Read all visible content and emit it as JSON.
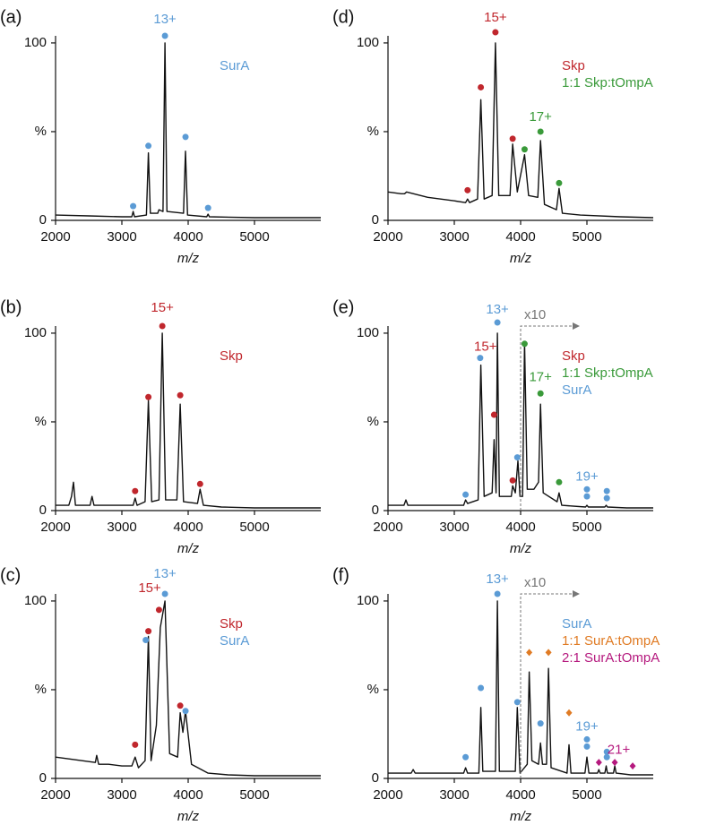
{
  "chart_data": [
    {
      "type": "line",
      "label": "(a)",
      "xlabel": "m/z",
      "xlim": [
        2000,
        6000
      ],
      "xticks": [
        2000,
        3000,
        4000,
        5000
      ],
      "ylim": [
        0,
        104
      ],
      "yticks": [
        0,
        {
          "value": 50,
          "label": "%"
        },
        100
      ],
      "x": [
        2000,
        2500,
        3000,
        3150,
        3170,
        3190,
        3370,
        3400,
        3430,
        3540,
        3560,
        3620,
        3650,
        3680,
        3930,
        3960,
        3990,
        4280,
        4300,
        4320,
        5000,
        6000
      ],
      "values": [
        3,
        2.5,
        2,
        2,
        5,
        2,
        3,
        38,
        4,
        4,
        6,
        5,
        100,
        5,
        4,
        39,
        3,
        2,
        3.5,
        2,
        1.5,
        1.5
      ],
      "series": [
        {
          "name": "SurA",
          "color": "#5b9bd5",
          "marker": "circle",
          "x": [
            3170,
            3400,
            3650,
            3960,
            4300
          ],
          "values": [
            8,
            42,
            104,
            47,
            7
          ]
        }
      ],
      "annotations": [
        {
          "text": "13+",
          "color": "#5b9bd5",
          "x": 3650,
          "y": 113
        }
      ]
    },
    {
      "type": "line",
      "label": "(b)",
      "xlabel": "m/z",
      "xlim": [
        2000,
        6000
      ],
      "xticks": [
        2000,
        3000,
        4000,
        5000
      ],
      "ylim": [
        0,
        104
      ],
      "yticks": [
        0,
        {
          "value": 50,
          "label": "%"
        },
        100
      ],
      "x": [
        2000,
        2200,
        2240,
        2270,
        2300,
        2520,
        2550,
        2580,
        3000,
        3170,
        3200,
        3230,
        3350,
        3400,
        3450,
        3560,
        3610,
        3660,
        3830,
        3880,
        3930,
        4140,
        4180,
        4230,
        4500,
        5000,
        6000
      ],
      "values": [
        3,
        3,
        8,
        16,
        3,
        3,
        8,
        3,
        3,
        3,
        7,
        3,
        5,
        62,
        5,
        6,
        100,
        6,
        6,
        60,
        5,
        4,
        12,
        3,
        2,
        1.5,
        1.5
      ],
      "series": [
        {
          "name": "Skp",
          "color": "#c0272d",
          "marker": "circle",
          "x": [
            3200,
            3400,
            3610,
            3880,
            4180
          ],
          "values": [
            11,
            64,
            104,
            65,
            15
          ]
        }
      ],
      "annotations": [
        {
          "text": "15+",
          "color": "#c0272d",
          "x": 3610,
          "y": 114
        }
      ]
    },
    {
      "type": "line",
      "label": "(c)",
      "xlabel": "m/z",
      "xlim": [
        2000,
        6000
      ],
      "xticks": [
        2000,
        3000,
        4000,
        5000
      ],
      "ylim": [
        0,
        104
      ],
      "yticks": [
        0,
        {
          "value": 50,
          "label": "%"
        },
        100
      ],
      "x": [
        2000,
        2200,
        2400,
        2600,
        2620,
        2650,
        2800,
        3000,
        3150,
        3200,
        3250,
        3350,
        3400,
        3440,
        3520,
        3580,
        3650,
        3720,
        3840,
        3880,
        3920,
        3960,
        4050,
        4300,
        4600,
        5000,
        6000
      ],
      "values": [
        12,
        11,
        10,
        9,
        13,
        8,
        8,
        7,
        7,
        12,
        6,
        10,
        80,
        10,
        30,
        85,
        100,
        14,
        12,
        37,
        26,
        38,
        8,
        3,
        2,
        1.5,
        1.5
      ],
      "series": [
        {
          "name": "Skp",
          "color": "#c0272d",
          "marker": "circle",
          "x": [
            3200,
            3400,
            3560,
            3880
          ],
          "values": [
            19,
            83,
            95,
            41
          ]
        },
        {
          "name": "SurA",
          "color": "#5b9bd5",
          "marker": "circle",
          "x": [
            3360,
            3650,
            3960
          ],
          "values": [
            78,
            104,
            38
          ]
        }
      ],
      "annotations": [
        {
          "text": "15+",
          "color": "#c0272d",
          "x": 3420,
          "y": 107
        },
        {
          "text": "13+",
          "color": "#5b9bd5",
          "x": 3650,
          "y": 115
        }
      ]
    },
    {
      "type": "line",
      "label": "(d)",
      "xlabel": "m/z",
      "xlim": [
        2000,
        6000
      ],
      "xticks": [
        2000,
        3000,
        4000,
        5000
      ],
      "ylim": [
        0,
        104
      ],
      "yticks": [
        0,
        {
          "value": 50,
          "label": "%"
        },
        100
      ],
      "x": [
        2000,
        2200,
        2250,
        2280,
        2600,
        3000,
        3170,
        3200,
        3230,
        3350,
        3400,
        3450,
        3570,
        3620,
        3670,
        3840,
        3880,
        3950,
        4060,
        4120,
        4260,
        4300,
        4360,
        4540,
        4580,
        4630,
        4900,
        5500,
        6000
      ],
      "values": [
        16,
        15,
        15,
        16,
        13,
        11,
        10,
        12,
        10,
        12,
        68,
        12,
        14,
        100,
        14,
        14,
        43,
        16,
        37,
        14,
        13,
        45,
        9,
        6,
        18,
        4,
        3,
        2,
        1.5
      ],
      "series": [
        {
          "name": "Skp",
          "color": "#c0272d",
          "marker": "circle",
          "x": [
            3200,
            3400,
            3620,
            3880
          ],
          "values": [
            17,
            75,
            106,
            46
          ]
        },
        {
          "name": "1:1 Skp:tOmpA",
          "color": "#3a9a3a",
          "marker": "circle",
          "x": [
            4060,
            4300,
            4580
          ],
          "values": [
            40,
            50,
            21
          ]
        }
      ],
      "annotations": [
        {
          "text": "15+",
          "color": "#c0272d",
          "x": 3620,
          "y": 114
        },
        {
          "text": "17+",
          "color": "#3a9a3a",
          "x": 4300,
          "y": 58
        }
      ]
    },
    {
      "type": "line",
      "label": "(e)",
      "xlabel": "m/z",
      "xlim": [
        2000,
        6000
      ],
      "xticks": [
        2000,
        3000,
        4000,
        5000
      ],
      "ylim": [
        0,
        104
      ],
      "yticks": [
        0,
        {
          "value": 50,
          "label": "%"
        },
        100
      ],
      "zoom": {
        "x": 4000,
        "y": 104,
        "label": "x10"
      },
      "x": [
        2000,
        2240,
        2270,
        2300,
        2600,
        3000,
        3140,
        3170,
        3200,
        3360,
        3400,
        3450,
        3570,
        3600,
        3630,
        3650,
        3680,
        3860,
        3880,
        3920,
        3960,
        3990,
        4030,
        4060,
        4100,
        4200,
        4270,
        4300,
        4340,
        4550,
        4580,
        4620,
        4980,
        5000,
        5020,
        5270,
        5290,
        5310,
        5600,
        6000
      ],
      "values": [
        3,
        3,
        6,
        3,
        3,
        3,
        3,
        6,
        4,
        6,
        82,
        8,
        10,
        40,
        10,
        100,
        8,
        8,
        14,
        10,
        28,
        8,
        8,
        95,
        12,
        12,
        16,
        60,
        10,
        5,
        10,
        3,
        2,
        3,
        2,
        2,
        3,
        2,
        1.5,
        1.5
      ],
      "series": [
        {
          "name": "Skp",
          "color": "#c0272d",
          "marker": "circle",
          "x": [
            3600,
            3880
          ],
          "values": [
            54,
            17
          ]
        },
        {
          "name": "1:1 Skp:tOmpA",
          "color": "#3a9a3a",
          "marker": "circle",
          "x": [
            4060,
            4300,
            4580
          ],
          "values": [
            94,
            66,
            16
          ]
        },
        {
          "name": "SurA",
          "color": "#5b9bd5",
          "marker": "circle",
          "x": [
            3170,
            3390,
            3650,
            3950,
            5000,
            5000,
            5300,
            5300
          ],
          "values": [
            9,
            86,
            106,
            30,
            12,
            8,
            11,
            7
          ]
        }
      ],
      "annotations": [
        {
          "text": "13+",
          "color": "#5b9bd5",
          "x": 3650,
          "y": 113
        },
        {
          "text": "15+",
          "color": "#c0272d",
          "x": 3470,
          "y": 92
        },
        {
          "text": "17+",
          "color": "#3a9a3a",
          "x": 4300,
          "y": 75
        },
        {
          "text": "19+",
          "color": "#5b9bd5",
          "x": 5000,
          "y": 19
        }
      ]
    },
    {
      "type": "line",
      "label": "(f)",
      "xlabel": "m/z",
      "xlim": [
        2000,
        6000
      ],
      "xticks": [
        2000,
        3000,
        4000,
        5000
      ],
      "ylim": [
        0,
        104
      ],
      "yticks": [
        0,
        {
          "value": 50,
          "label": "%"
        },
        100
      ],
      "zoom": {
        "x": 4000,
        "y": 104,
        "label": "x10"
      },
      "x": [
        2000,
        2350,
        2380,
        2410,
        3000,
        3140,
        3170,
        3200,
        3370,
        3400,
        3430,
        3620,
        3650,
        3680,
        3920,
        3950,
        3990,
        4100,
        4130,
        4170,
        4270,
        4300,
        4330,
        4390,
        4420,
        4460,
        4700,
        4730,
        4760,
        4970,
        5000,
        5030,
        5160,
        5180,
        5200,
        5270,
        5290,
        5310,
        5400,
        5420,
        5440,
        5660,
        5680,
        5700,
        6000
      ],
      "values": [
        3,
        3,
        5,
        3,
        3,
        3,
        6,
        3,
        3,
        40,
        4,
        4,
        100,
        4,
        4,
        40,
        3,
        8,
        60,
        10,
        8,
        20,
        8,
        8,
        62,
        6,
        3,
        19,
        3,
        3,
        12,
        3,
        3,
        5,
        3,
        3,
        7,
        3,
        3,
        7,
        3,
        2,
        2,
        2,
        2
      ],
      "series": [
        {
          "name": "SurA",
          "color": "#5b9bd5",
          "marker": "circle",
          "x": [
            3170,
            3400,
            3650,
            3950,
            4300,
            5000,
            5000,
            5300,
            5300
          ],
          "values": [
            12,
            51,
            104,
            43,
            31,
            22,
            18,
            15,
            12
          ]
        },
        {
          "name": "1:1 SurA:tOmpA",
          "color": "#e07b24",
          "marker": "diamond",
          "x": [
            4130,
            4420,
            4730
          ],
          "values": [
            71,
            71,
            37
          ]
        },
        {
          "name": "2:1 SurA:tOmpA",
          "color": "#b5197e",
          "marker": "diamond",
          "x": [
            5180,
            5420,
            5690
          ],
          "values": [
            9,
            9,
            7
          ]
        }
      ],
      "annotations": [
        {
          "text": "13+",
          "color": "#5b9bd5",
          "x": 3650,
          "y": 112
        },
        {
          "text": "19+",
          "color": "#5b9bd5",
          "x": 5000,
          "y": 29
        },
        {
          "text": "21+",
          "color": "#b5197e",
          "x": 5480,
          "y": 16
        }
      ]
    }
  ]
}
